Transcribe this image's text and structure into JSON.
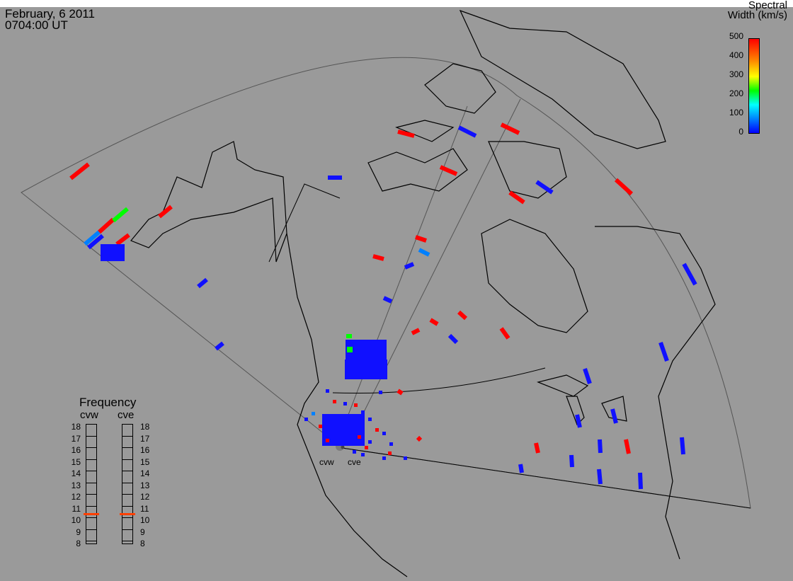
{
  "header": {
    "date": "February, 6 2011",
    "time": "0704:00 UT"
  },
  "colorbar": {
    "title_line1": "Spectral",
    "title_line2": "Width (km/s)",
    "ticks": [
      "500",
      "400",
      "300",
      "200",
      "100",
      "0"
    ],
    "colors": [
      "#0000ff",
      "#0080ff",
      "#00ffff",
      "#00ff00",
      "#ffff00",
      "#ff8000",
      "#ff0000"
    ]
  },
  "radars": {
    "west": "cvw",
    "east": "cve"
  },
  "frequency": {
    "title": "Frequency",
    "col_west": "cvw",
    "col_east": "cve",
    "labels": [
      "18",
      "17",
      "16",
      "15",
      "14",
      "13",
      "12",
      "11",
      "10",
      "9",
      "8"
    ],
    "cvw_value_mhz": 10.7,
    "cve_value_mhz": 10.7
  },
  "colors": {
    "background": "#9a9a9a",
    "red": "#ff0000",
    "blue": "#1010ff",
    "light_blue": "#0080ff",
    "green": "#00ff00",
    "marker": "#ff4000"
  }
}
